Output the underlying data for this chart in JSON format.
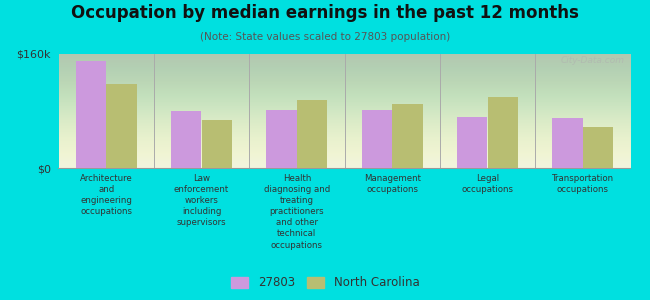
{
  "title": "Occupation by median earnings in the past 12 months",
  "subtitle": "(Note: State values scaled to 27803 population)",
  "background_outer": "#00e0e0",
  "background_inner_top": "#f5f8e8",
  "background_inner_bottom": "#e8f0d0",
  "bar_color_27803": "#cc99dd",
  "bar_color_nc": "#b8be72",
  "categories": [
    "Architecture\nand\nengineering\noccupations",
    "Law\nenforcement\nworkers\nincluding\nsupervisors",
    "Health\ndiagnosing and\ntreating\npractitioners\nand other\ntechnical\noccupations",
    "Management\noccupations",
    "Legal\noccupations",
    "Transportation\noccupations"
  ],
  "values_27803": [
    150000,
    80000,
    82000,
    82000,
    72000,
    70000
  ],
  "values_nc": [
    118000,
    68000,
    95000,
    90000,
    100000,
    58000
  ],
  "ylim": [
    0,
    160000
  ],
  "ytick_labels": [
    "$0",
    "$160k"
  ],
  "legend_27803": "27803",
  "legend_nc": "North Carolina",
  "watermark": "City-Data.com",
  "bar_width": 0.32
}
